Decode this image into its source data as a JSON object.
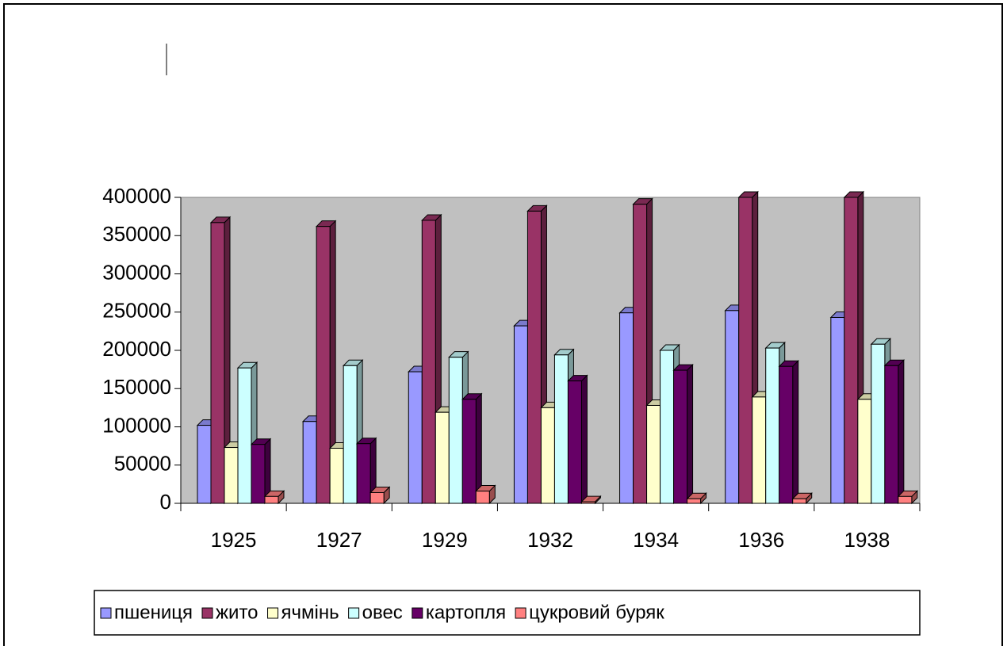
{
  "chart_data": {
    "type": "bar3d",
    "categories": [
      "1925",
      "1927",
      "1929",
      "1932",
      "1934",
      "1936",
      "1938"
    ],
    "series": [
      {
        "name": "пшениця",
        "color": "#9999ff",
        "values": [
          102000,
          107000,
          172000,
          232000,
          249000,
          252000,
          243000
        ]
      },
      {
        "name": "жито",
        "color": "#993366",
        "values": [
          367000,
          362000,
          370000,
          382000,
          391000,
          400000,
          400000
        ]
      },
      {
        "name": "ячмінь",
        "color": "#ffffcc",
        "values": [
          73000,
          72000,
          119000,
          125000,
          128000,
          139000,
          136000
        ]
      },
      {
        "name": "овес",
        "color": "#ccffff",
        "values": [
          177000,
          180000,
          191000,
          194000,
          200000,
          203000,
          208000
        ]
      },
      {
        "name": "картопля",
        "color": "#660066",
        "values": [
          77000,
          78000,
          136000,
          160000,
          174000,
          179000,
          180000
        ]
      },
      {
        "name": "цукровий буряк",
        "color": "#ff8080",
        "values": [
          9000,
          14000,
          16000,
          2000,
          6000,
          6000,
          9000
        ]
      }
    ],
    "ylim": [
      0,
      400000
    ],
    "yticks": [
      0,
      50000,
      100000,
      150000,
      200000,
      250000,
      300000,
      350000,
      400000
    ],
    "plot_background": "#c0c0c0",
    "legend": "bottom"
  }
}
